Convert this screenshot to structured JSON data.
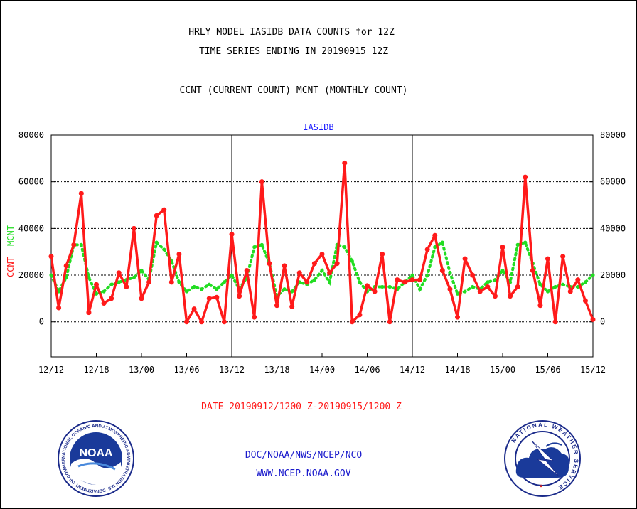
{
  "header": {
    "title_line1": "HRLY MODEL IASIDB DATA COUNTS for 12Z",
    "title_line2": "TIME SERIES ENDING IN 20190915 12Z",
    "legend_line": "CCNT (CURRENT COUNT) MCNT (MONTHLY COUNT)"
  },
  "footer": {
    "date_range": "DATE 20190912/1200 Z-20190915/1200 Z",
    "org": "DOC/NOAA/NWS/NCEP/NCO",
    "url": "WWW.NCEP.NOAA.GOV"
  },
  "logos": {
    "noaa_text": "NOAA",
    "noaa_ring": "NATIONAL OCEANIC AND ATMOSPHERIC ADMINISTRATION U.S. DEPARTMENT OF COMMERCE",
    "nws_ring": "NATIONAL WEATHER SERVICE"
  },
  "colors": {
    "ccnt": "#ff1a1a",
    "mcnt": "#22dd22",
    "panel_title": "#1a1aff",
    "footer_red": "#ff1a1a",
    "footer_blue": "#1a1acc"
  },
  "chart_data": {
    "type": "line",
    "title": "IASIDB",
    "ylabel_ccnt": "CCNT",
    "ylabel_mcnt": "MCNT",
    "ylim": [
      -15000,
      80000
    ],
    "yticks": [
      0,
      20000,
      40000,
      60000,
      80000
    ],
    "ytick_labels": [
      "0",
      "20000",
      "40000",
      "60000",
      "80000"
    ],
    "xlim": [
      0,
      72
    ],
    "xticks": [
      0,
      6,
      12,
      18,
      24,
      30,
      36,
      42,
      48,
      54,
      60,
      66,
      72
    ],
    "xtick_labels": [
      "12/12",
      "12/18",
      "13/00",
      "13/06",
      "13/12",
      "13/18",
      "14/00",
      "14/06",
      "14/12",
      "14/18",
      "15/00",
      "15/06",
      "15/12"
    ],
    "day_boundaries": [
      24,
      48
    ],
    "grid": true,
    "series": [
      {
        "name": "CCNT",
        "style": "solid",
        "values": [
          28000,
          6000,
          24000,
          33000,
          55000,
          4000,
          16000,
          8000,
          10000,
          21000,
          15000,
          40000,
          10000,
          17000,
          45500,
          48000,
          17000,
          29000,
          0,
          5500,
          0,
          10000,
          10500,
          0,
          37500,
          11000,
          22000,
          2000,
          60000,
          25000,
          7000,
          24000,
          6500,
          21000,
          17000,
          25000,
          29000,
          21000,
          25000,
          68000,
          0,
          3000,
          15500,
          13000,
          29000,
          0,
          18000,
          17000,
          18000,
          18000,
          31000,
          37000,
          22000,
          14000,
          2000,
          27000,
          20000,
          13000,
          15000,
          11000,
          32000,
          11000,
          15000,
          62000,
          22000,
          7000,
          27000,
          0,
          28000,
          13000,
          18000,
          9000,
          1000
        ]
      },
      {
        "name": "MCNT",
        "style": "dotted",
        "values": [
          20000,
          13000,
          19000,
          33000,
          33000,
          19000,
          12000,
          13000,
          16000,
          17000,
          18000,
          19000,
          22000,
          18000,
          34000,
          31000,
          26000,
          17000,
          13000,
          15000,
          14000,
          16000,
          14000,
          17000,
          20000,
          14000,
          19000,
          32000,
          33000,
          25000,
          11000,
          14000,
          13000,
          17000,
          16000,
          18000,
          22000,
          17000,
          33000,
          32000,
          26000,
          17000,
          13000,
          15000,
          15000,
          15000,
          14000,
          17000,
          20000,
          14000,
          20000,
          32000,
          34000,
          21000,
          12000,
          13000,
          15000,
          14000,
          17000,
          18000,
          22000,
          17000,
          33000,
          34000,
          25000,
          16000,
          13000,
          15000,
          16000,
          15000,
          15000,
          17000,
          20000
        ]
      }
    ]
  }
}
